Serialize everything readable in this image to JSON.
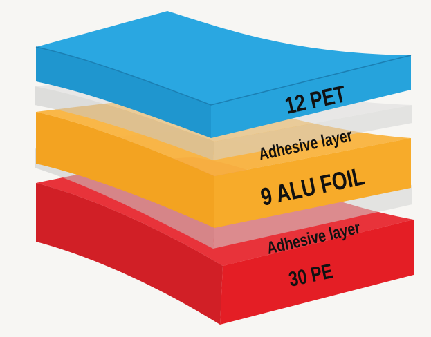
{
  "layers": [
    {
      "key": "pe",
      "label": "30 PE",
      "color": "#e8242b"
    },
    {
      "key": "adhesive_bottom",
      "label": "Adhesive layer",
      "color": "#d9d9d9"
    },
    {
      "key": "alu",
      "label": "9 ALU FOIL",
      "color": "#f6a623"
    },
    {
      "key": "adhesive_top",
      "label": "Adhesive layer",
      "color": "#d9d9d9"
    },
    {
      "key": "pet",
      "label": "12 PET",
      "color": "#27a8e0"
    }
  ]
}
